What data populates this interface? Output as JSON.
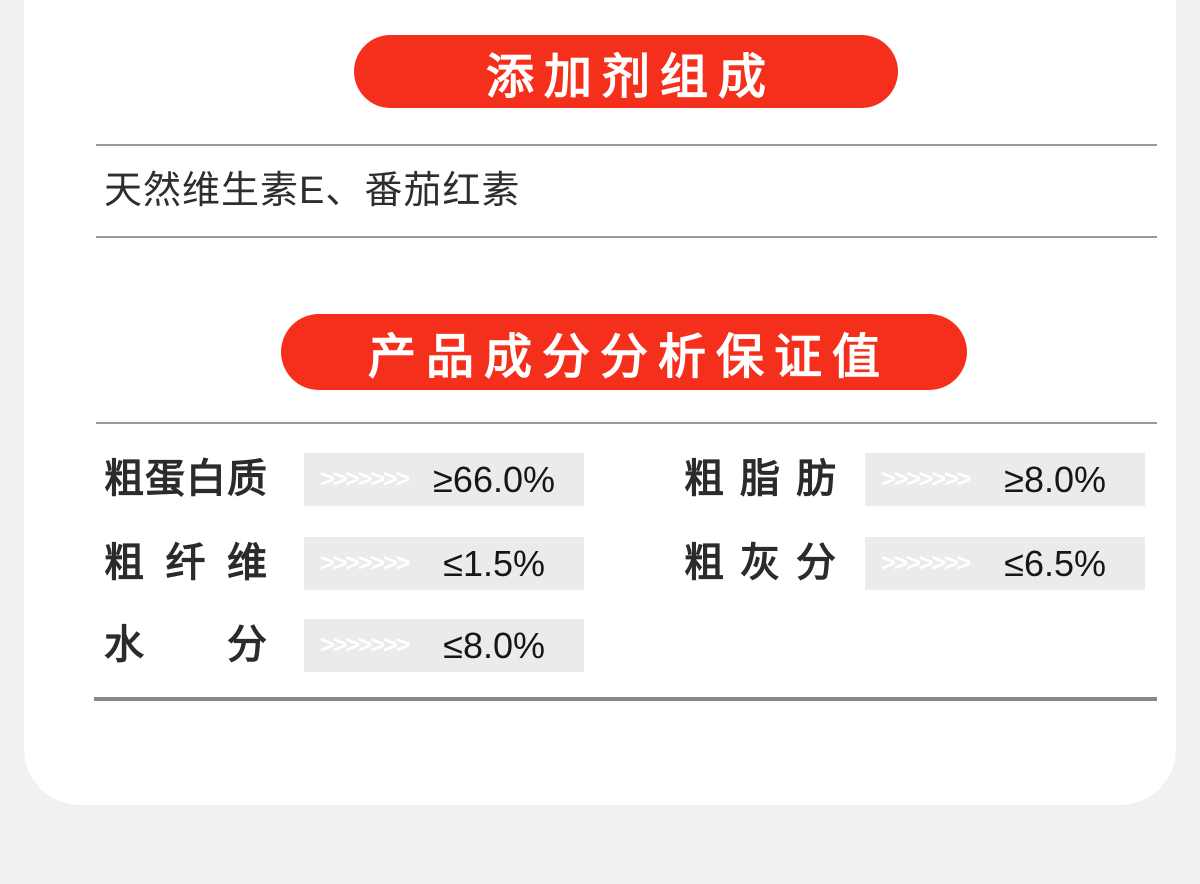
{
  "colors": {
    "page_bg": "#f1f1f2",
    "card_bg": "#ffffff",
    "accent_red": "#f4301d",
    "value_box_bg": "#ebebeb",
    "divider_gray": "#9a9a9a"
  },
  "additives_section": {
    "title": "添加剂组成",
    "ingredients": "天然维生素E、番茄红素"
  },
  "analysis_section": {
    "title": "产品成分分析保证值",
    "chevrons": ">>>>>>>",
    "rows": [
      {
        "cells": [
          {
            "label": "粗蛋白质",
            "value": "≥66.0%"
          },
          {
            "label": "粗脂肪",
            "value": "≥8.0%"
          }
        ]
      },
      {
        "cells": [
          {
            "label": "粗纤维",
            "value": "≤1.5%"
          },
          {
            "label": "粗灰分",
            "value": "≤6.5%"
          }
        ]
      },
      {
        "cells": [
          {
            "label": "水分",
            "value": "≤8.0%"
          }
        ]
      }
    ]
  }
}
